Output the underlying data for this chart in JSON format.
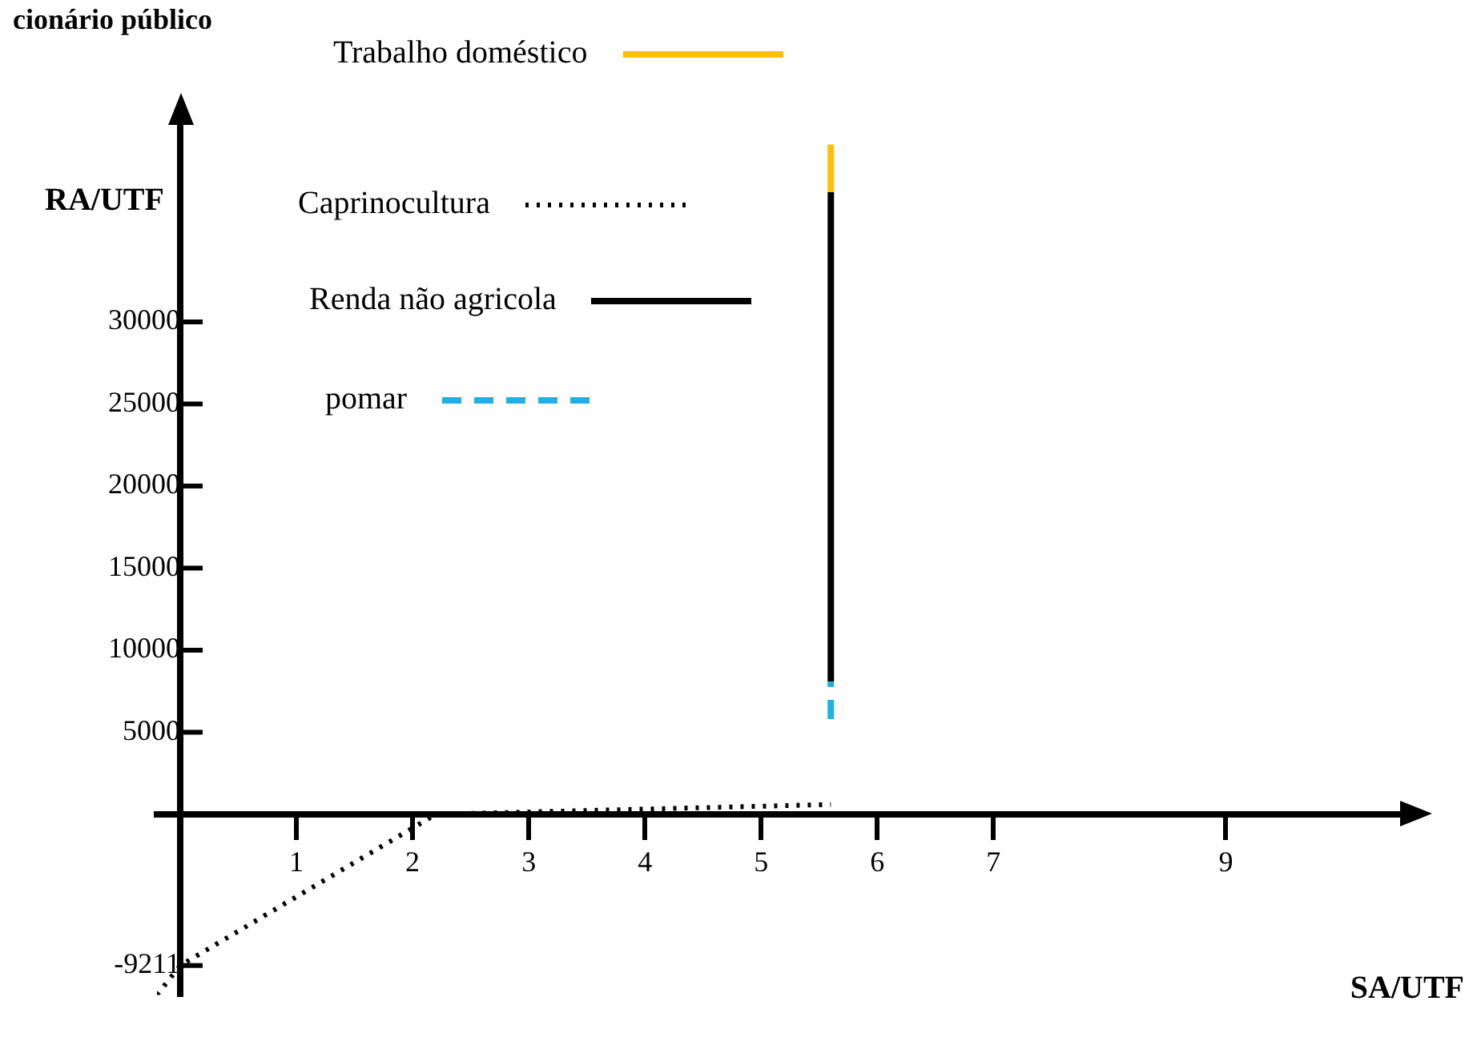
{
  "chart_data": {
    "type": "line",
    "xlabel": "SA/UTF",
    "ylabel": "RA/UTF",
    "annotations": [
      "cionário público"
    ],
    "xlim": [
      -0.2,
      10.5
    ],
    "xticks": [
      1,
      2,
      3,
      4,
      5,
      6,
      7,
      9
    ],
    "ylim": [
      -11000,
      42000
    ],
    "yticks": [
      -9211,
      5000,
      10000,
      15000,
      20000,
      25000,
      30000
    ],
    "grid": false,
    "legend": "top",
    "marker": "none",
    "series": [
      {
        "name": "Trabalho doméstico",
        "color": "#ffc000",
        "line_style": "solid",
        "x": [
          5.6,
          5.6
        ],
        "values": [
          37900,
          40800
        ]
      },
      {
        "name": "Caprinocultura",
        "color": "#000000",
        "line_style": "dotted",
        "x": [
          -0.2,
          0,
          2.2,
          5.6
        ],
        "values": [
          -11000,
          -9211,
          0,
          600
        ]
      },
      {
        "name": "Renda não agricola",
        "color": "#000000",
        "line_style": "solid",
        "x": [
          5.6,
          5.6
        ],
        "values": [
          8100,
          37900
        ]
      },
      {
        "name": "pomar",
        "color": "#1fb0e6",
        "line_style": "dashed",
        "x": [
          5.6,
          5.6
        ],
        "values": [
          5800,
          8100
        ]
      }
    ]
  }
}
